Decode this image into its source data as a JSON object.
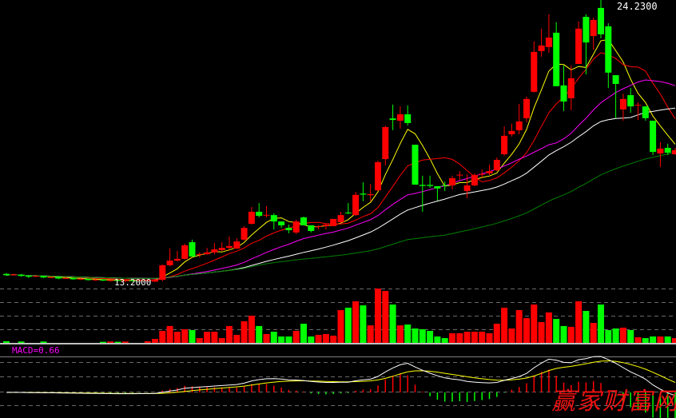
{
  "chart_data": {
    "type": "candlestick",
    "price_labels": {
      "high": "24.2300",
      "low": "13.2000"
    },
    "price_range": [
      13.2,
      24.23
    ],
    "candles_ohlc_note": "each candle is [open, close, high, low]",
    "candles": [
      [
        13.52,
        13.47,
        13.55,
        13.44
      ],
      [
        13.47,
        13.5,
        13.53,
        13.45
      ],
      [
        13.49,
        13.44,
        13.52,
        13.41
      ],
      [
        13.45,
        13.41,
        13.47,
        13.36
      ],
      [
        13.42,
        13.44,
        13.46,
        13.4
      ],
      [
        13.44,
        13.38,
        13.45,
        13.36
      ],
      [
        13.38,
        13.4,
        13.42,
        13.35
      ],
      [
        13.4,
        13.34,
        13.41,
        13.31
      ],
      [
        13.35,
        13.36,
        13.4,
        13.33
      ],
      [
        13.36,
        13.31,
        13.37,
        13.29
      ],
      [
        13.31,
        13.33,
        13.36,
        13.28
      ],
      [
        13.33,
        13.28,
        13.34,
        13.26
      ],
      [
        13.28,
        13.3,
        13.32,
        13.25
      ],
      [
        13.3,
        13.26,
        13.31,
        13.24
      ],
      [
        13.26,
        13.28,
        13.3,
        13.22
      ],
      [
        13.28,
        13.25,
        13.3,
        13.23
      ],
      [
        13.25,
        13.27,
        13.29,
        13.2
      ],
      [
        13.27,
        13.26,
        13.3,
        13.22
      ],
      [
        13.26,
        13.29,
        13.31,
        13.24
      ],
      [
        13.25,
        13.29,
        13.31,
        13.23
      ],
      [
        13.22,
        13.3,
        13.33,
        13.2
      ],
      [
        13.29,
        13.86,
        13.89,
        13.23
      ],
      [
        13.86,
        14.04,
        14.51,
        13.82
      ],
      [
        14.04,
        14.11,
        14.42,
        14.01
      ],
      [
        14.11,
        14.64,
        14.7,
        14.08
      ],
      [
        14.76,
        14.2,
        14.86,
        14.2
      ],
      [
        14.27,
        14.3,
        14.36,
        14.17
      ],
      [
        14.29,
        14.36,
        14.54,
        14.27
      ],
      [
        14.36,
        14.48,
        14.73,
        14.29
      ],
      [
        14.45,
        14.54,
        14.76,
        14.42
      ],
      [
        14.54,
        14.61,
        14.98,
        14.45
      ],
      [
        14.51,
        14.79,
        14.92,
        14.51
      ],
      [
        14.86,
        15.32,
        15.39,
        14.82
      ],
      [
        15.48,
        15.95,
        16.14,
        15.45
      ],
      [
        15.95,
        15.79,
        16.29,
        15.73
      ],
      [
        15.8,
        15.83,
        16.17,
        15.73
      ],
      [
        15.82,
        15.57,
        15.89,
        15.26
      ],
      [
        15.57,
        15.42,
        15.57,
        15.32
      ],
      [
        15.32,
        15.23,
        15.45,
        15.11
      ],
      [
        15.14,
        15.57,
        15.64,
        15.07
      ],
      [
        15.73,
        15.42,
        15.76,
        15.42
      ],
      [
        15.42,
        15.2,
        15.42,
        15.14
      ],
      [
        15.36,
        15.39,
        15.42,
        15.26
      ],
      [
        15.39,
        15.45,
        15.51,
        15.26
      ],
      [
        15.39,
        15.67,
        15.67,
        15.39
      ],
      [
        15.54,
        15.82,
        15.95,
        15.51
      ],
      [
        15.92,
        15.89,
        16.29,
        15.86
      ],
      [
        15.82,
        16.61,
        16.73,
        15.79
      ],
      [
        16.66,
        16.62,
        17.1,
        16.36
      ],
      [
        16.6,
        16.64,
        17.04,
        16.36
      ],
      [
        16.79,
        17.89,
        17.95,
        16.76
      ],
      [
        18.01,
        19.26,
        19.32,
        17.76
      ],
      [
        19.6,
        19.54,
        20.14,
        19.14
      ],
      [
        19.51,
        19.76,
        20.07,
        19.2
      ],
      [
        19.76,
        19.42,
        20.11,
        19.32
      ],
      [
        18.57,
        17.01,
        18.57,
        17.01
      ],
      [
        17.0,
        16.96,
        17.36,
        15.95
      ],
      [
        17.0,
        16.96,
        17.36,
        16.89
      ],
      [
        16.95,
        16.86,
        16.95,
        16.39
      ],
      [
        16.99,
        16.96,
        17.13,
        16.76
      ],
      [
        16.98,
        17.26,
        17.36,
        16.82
      ],
      [
        17.37,
        17.4,
        17.54,
        17.2
      ],
      [
        16.76,
        16.98,
        17.42,
        16.48
      ],
      [
        16.98,
        17.39,
        17.45,
        16.95
      ],
      [
        17.4,
        17.43,
        17.6,
        17.29
      ],
      [
        17.45,
        17.54,
        17.79,
        17.39
      ],
      [
        17.57,
        17.98,
        18.07,
        17.54
      ],
      [
        18.2,
        18.92,
        19.29,
        18.14
      ],
      [
        18.98,
        19.11,
        19.39,
        18.89
      ],
      [
        19.14,
        19.48,
        20.17,
        18.98
      ],
      [
        19.61,
        20.36,
        20.45,
        19.45
      ],
      [
        20.64,
        22.2,
        22.61,
        20.61
      ],
      [
        22.23,
        22.45,
        23.11,
        22.01
      ],
      [
        22.39,
        22.76,
        23.67,
        22.17
      ],
      [
        22.95,
        20.86,
        23.36,
        20.86
      ],
      [
        20.89,
        20.26,
        21.67,
        19.89
      ],
      [
        20.39,
        21.17,
        21.67,
        19.92
      ],
      [
        21.73,
        23.11,
        23.39,
        21.73
      ],
      [
        23.57,
        22.57,
        23.67,
        21.32
      ],
      [
        22.82,
        23.45,
        23.54,
        22.29
      ],
      [
        23.92,
        22.89,
        24.23,
        22.73
      ],
      [
        23.2,
        21.39,
        23.32,
        20.79
      ],
      [
        21.29,
        20.95,
        21.29,
        19.61
      ],
      [
        19.95,
        20.36,
        20.57,
        19.51
      ],
      [
        20.51,
        20.07,
        20.79,
        19.82
      ],
      [
        20.1,
        20.13,
        20.23,
        19.54
      ],
      [
        20.07,
        19.61,
        20.07,
        19.51
      ],
      [
        19.51,
        18.29,
        19.51,
        18.17
      ],
      [
        18.23,
        18.42,
        18.67,
        17.7
      ],
      [
        18.45,
        18.26,
        18.61,
        18.17
      ],
      [
        18.2,
        18.36,
        18.45,
        18.17
      ]
    ],
    "volume_relative": [
      0.12,
      0,
      0.1,
      0,
      0,
      0.1,
      0,
      0,
      0,
      0,
      0,
      0,
      0,
      0.08,
      0.1,
      0.08,
      0.1,
      0,
      0,
      0.12,
      0.29,
      0.88,
      1.24,
      0.82,
      1.0,
      0.94,
      0.35,
      0.82,
      0.82,
      0.35,
      1.24,
      0.59,
      1.59,
      2.0,
      1.24,
      0.65,
      0.82,
      0.47,
      0.47,
      0.88,
      1.41,
      0.47,
      0.59,
      0.65,
      0.53,
      2.41,
      2.59,
      3.06,
      2.76,
      1.29,
      4.0,
      3.82,
      2.82,
      1.29,
      1.35,
      1.06,
      1.0,
      0.88,
      0.47,
      0.35,
      0.71,
      0.71,
      0.82,
      0.82,
      0.82,
      0.71,
      1.41,
      2.59,
      1.06,
      2.41,
      1.82,
      2.82,
      1.53,
      2.24,
      1.76,
      1.24,
      1.18,
      3.06,
      2.35,
      1.47,
      2.82,
      0.94,
      1.06,
      1.12,
      0.94,
      0.41,
      0.35,
      0.47,
      0.47,
      0.47,
      0.35
    ],
    "moving_averages": [
      {
        "period": 5,
        "color": "#ffff00"
      },
      {
        "period": 10,
        "color": "#ff0000"
      },
      {
        "period": 20,
        "color": "#ff00ff"
      },
      {
        "period": 30,
        "color": "#ffffff"
      },
      {
        "period": 60,
        "color": "#008000"
      }
    ],
    "macd": {
      "label": "MACD=0.66",
      "dif_color": "#ffffff",
      "dea_color": "#ffff00"
    },
    "colors": {
      "up": "#ff0000",
      "down": "#00ff00",
      "grid": "#808080",
      "background": "#000000",
      "macd_label": "#ff00ff"
    },
    "grid": true
  },
  "watermark": "赢家财富网"
}
